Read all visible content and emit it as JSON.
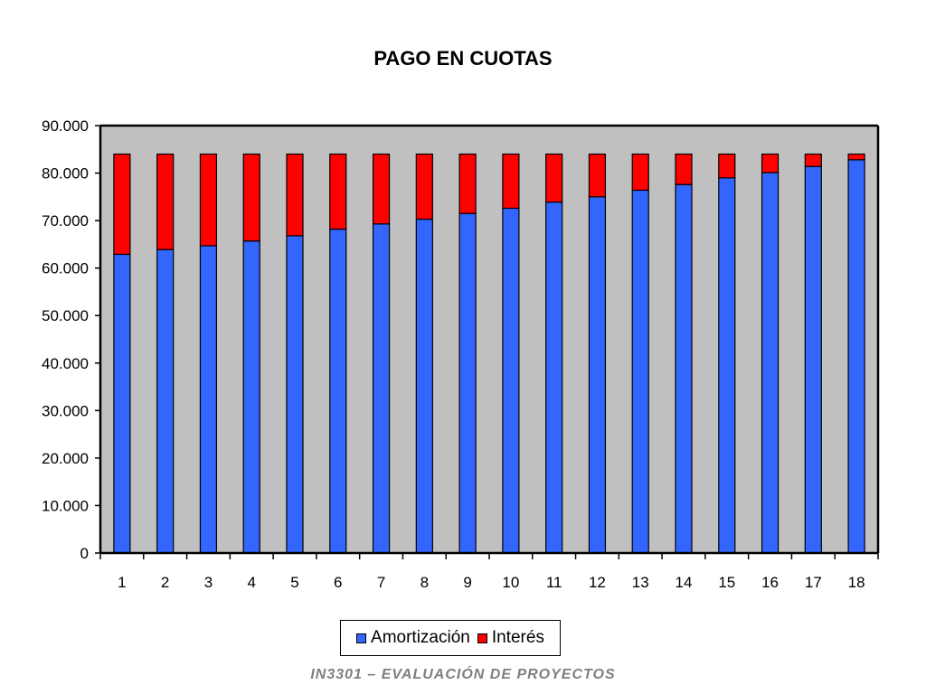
{
  "slide": {
    "footer": "IN3301 – EVALUACIÓN DE PROYECTOS"
  },
  "chart_data": {
    "type": "bar",
    "stacked": true,
    "title": "PAGO EN CUOTAS",
    "xlabel": "",
    "ylabel": "",
    "ylim": [
      0,
      90000
    ],
    "yticks": [
      0,
      10000,
      20000,
      30000,
      40000,
      50000,
      60000,
      70000,
      80000,
      90000
    ],
    "ytick_labels": [
      "0",
      "10.000",
      "20.000",
      "30.000",
      "40.000",
      "50.000",
      "60.000",
      "70.000",
      "80.000",
      "90.000"
    ],
    "categories": [
      "1",
      "2",
      "3",
      "4",
      "5",
      "6",
      "7",
      "8",
      "9",
      "10",
      "11",
      "12",
      "13",
      "14",
      "15",
      "16",
      "17",
      "18"
    ],
    "series": [
      {
        "name": "Amortización",
        "color": "#3366ff",
        "values": [
          62900,
          63900,
          64700,
          65700,
          66800,
          68200,
          69300,
          70300,
          71500,
          72600,
          73900,
          75000,
          76400,
          77600,
          79000,
          80100,
          81400,
          82800
        ]
      },
      {
        "name": "Interés",
        "color": "#ff0000",
        "values": [
          21100,
          20100,
          19300,
          18300,
          17200,
          15800,
          14700,
          13700,
          12500,
          11400,
          10100,
          9000,
          7600,
          6400,
          5000,
          3900,
          2600,
          1200
        ]
      }
    ],
    "plot_background": "#c0c0c0",
    "grid": false,
    "legend_position": "bottom"
  }
}
